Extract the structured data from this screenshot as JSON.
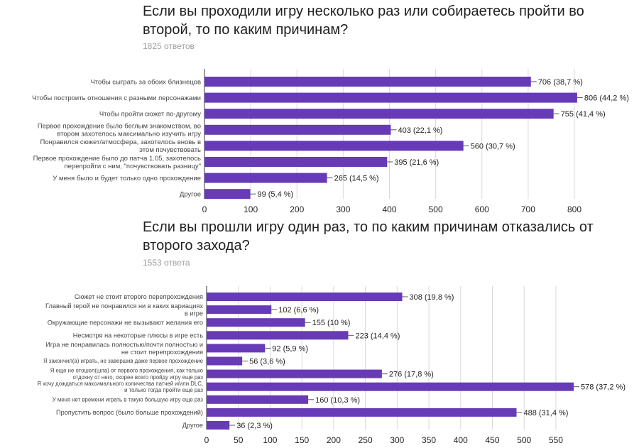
{
  "colors": {
    "bar": "#673ab7",
    "axis": "#333333",
    "grid": "#d9d9d9",
    "text": "#222222",
    "label": "#444444"
  },
  "chart_data": [
    {
      "type": "bar",
      "orientation": "horizontal",
      "title": "Если вы проходили игру несколько раз или собираетесь пройти во второй, то по каким причинам?",
      "responses": "1825 ответов",
      "categories": [
        [
          "Чтобы сыграть за обоих близнецов"
        ],
        [
          "Чтобы построить отношения с разными персонажами"
        ],
        [
          "Чтобы пройти сюжет по-другому"
        ],
        [
          "Первое прохождение было беглым знакомством, во",
          "втором захотелось максимально изучить игру"
        ],
        [
          "Понравился сюжет/атмосфера, захотелось вновь в",
          "этом почувствовать"
        ],
        [
          "Первое прохождение было до патча 1.05, захотелось",
          "перепройти с ним, \"почувствовать разницу\""
        ],
        [
          "У меня было и будет только одно прохождение"
        ],
        [
          "Другое"
        ]
      ],
      "values": [
        706,
        806,
        755,
        403,
        560,
        395,
        265,
        99
      ],
      "value_labels": [
        "706 (38,7 %)",
        "806 (44,2 %)",
        "755 (41,4 %)",
        "403 (22,1 %)",
        "560 (30,7 %)",
        "395 (21,6 %)",
        "265 (14,5 %)",
        "99 (5,4 %)"
      ],
      "xlim": [
        0,
        800
      ],
      "xticks": [
        0,
        100,
        200,
        300,
        400,
        500,
        600,
        700,
        800
      ],
      "grid": true
    },
    {
      "type": "bar",
      "orientation": "horizontal",
      "title": "Если вы прошли игру один раз, то по каким причинам отказались от второго захода?",
      "responses": "1553 ответа",
      "categories": [
        [
          "Сюжет не стоит второго перепрохождения"
        ],
        [
          "Главный герой не понравился ни в каких вариациях",
          "в игре"
        ],
        [
          "Окружающие персонажи не вызывают желания его"
        ],
        [
          "Несмотря на некоторые плюсы в игре есть"
        ],
        [
          "Игра не понравилась полностью/почти полностью и",
          "не стоит перепрохождения"
        ],
        [
          "Я закончил(а) играть, не завершив даже первое прохождение"
        ],
        [
          "Я еще не отошел(шла) от первого прохождения, как только",
          "отдохну от него, скорее всего пройду игру еще раз"
        ],
        [
          "Я хочу дождаться максимального количества патчей и/или DLC,",
          "и только тогда пройти еще раз"
        ],
        [
          "У меня нет времени играть в такую большую игру еще раз"
        ],
        [
          "Пропустить вопрос (было больше прохождений)"
        ],
        [
          "Другое"
        ]
      ],
      "values": [
        308,
        102,
        155,
        223,
        92,
        56,
        276,
        578,
        160,
        488,
        36
      ],
      "value_labels": [
        "308 (19,8 %)",
        "102 (6,6 %)",
        "155 (10 %)",
        "223 (14,4 %)",
        "92 (5,9 %)",
        "56 (3,6 %)",
        "276 (17,8 %)",
        "578 (37,2 %)",
        "160 (10,3 %)",
        "488 (31,4 %)",
        "36 (2,3 %)"
      ],
      "xlim": [
        0,
        578
      ],
      "xticks": [
        0,
        50,
        100,
        150,
        200,
        250,
        300,
        350,
        400,
        450,
        500,
        550
      ],
      "grid": true
    }
  ]
}
